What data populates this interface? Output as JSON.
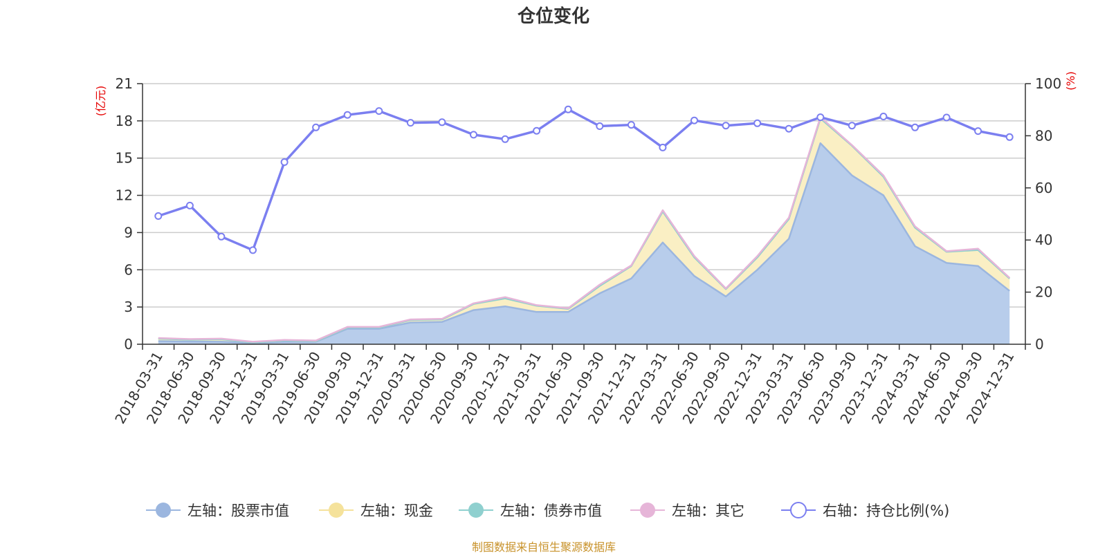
{
  "chart_data": {
    "type": "area",
    "title": "仓位变化",
    "left_unit": "(亿元)",
    "right_unit": "(%)",
    "left_ylim": [
      0,
      21
    ],
    "left_ticks": [
      0,
      3,
      6,
      9,
      12,
      15,
      18,
      21
    ],
    "right_ylim": [
      0,
      100
    ],
    "right_ticks": [
      0,
      20,
      40,
      60,
      80,
      100
    ],
    "categories": [
      "2018-03-31",
      "2018-06-30",
      "2018-09-30",
      "2018-12-31",
      "2019-03-31",
      "2019-06-30",
      "2019-09-30",
      "2019-12-31",
      "2020-03-31",
      "2020-06-30",
      "2020-09-30",
      "2020-12-31",
      "2021-03-31",
      "2021-06-30",
      "2021-09-30",
      "2021-12-31",
      "2022-03-31",
      "2022-06-30",
      "2022-09-30",
      "2022-12-31",
      "2023-03-31",
      "2023-06-30",
      "2023-09-30",
      "2023-12-31",
      "2024-03-31",
      "2024-06-30",
      "2024-09-30",
      "2024-12-31"
    ],
    "series": [
      {
        "name": "左轴：股票市值",
        "axis": "left",
        "stack": true,
        "color": "#9bb6df",
        "fill": "#b8cdeb",
        "values": [
          0.25,
          0.22,
          0.2,
          0.1,
          0.2,
          0.2,
          1.25,
          1.25,
          1.75,
          1.8,
          2.75,
          3.05,
          2.6,
          2.6,
          4.1,
          5.3,
          8.2,
          5.5,
          3.85,
          6.0,
          8.5,
          16.2,
          13.6,
          12.0,
          7.9,
          6.55,
          6.3,
          4.3
        ]
      },
      {
        "name": "左轴：现金",
        "axis": "left",
        "stack": true,
        "color": "#f5e29b",
        "fill": "#faefc4",
        "values": [
          0.2,
          0.15,
          0.2,
          0.05,
          0.1,
          0.05,
          0.1,
          0.1,
          0.2,
          0.2,
          0.5,
          0.65,
          0.5,
          0.25,
          0.6,
          1.0,
          2.5,
          1.5,
          0.6,
          1.0,
          1.6,
          2.0,
          2.4,
          1.5,
          1.5,
          0.9,
          1.3,
          1.0
        ]
      },
      {
        "name": "左轴：债券市值",
        "axis": "left",
        "stack": true,
        "color": "#8fd0cf",
        "fill": "#a8dcdb",
        "values": [
          0,
          0,
          0,
          0,
          0,
          0,
          0,
          0,
          0,
          0,
          0,
          0,
          0,
          0,
          0,
          0,
          0,
          0,
          0,
          0,
          0,
          0,
          0,
          0,
          0,
          0,
          0,
          0
        ]
      },
      {
        "name": "左轴：其它",
        "axis": "left",
        "stack": true,
        "color": "#e6b5d8",
        "fill": "#f0cfe6",
        "values": [
          0.05,
          0.05,
          0.05,
          0.05,
          0.05,
          0.05,
          0.05,
          0.05,
          0.05,
          0.05,
          0.05,
          0.1,
          0.05,
          0.05,
          0.1,
          0.05,
          0.1,
          0.1,
          0.05,
          0.1,
          0.1,
          0.1,
          0.05,
          0.1,
          0.1,
          0.05,
          0.1,
          0.05
        ]
      },
      {
        "name": "右轴：持仓比例(%)",
        "axis": "right",
        "type": "line",
        "color": "#7b7ff0",
        "values": [
          49.2,
          53.2,
          41.3,
          36.1,
          69.9,
          83.2,
          88.0,
          89.5,
          85.0,
          85.2,
          80.4,
          78.7,
          81.9,
          90.1,
          83.7,
          84.2,
          75.5,
          85.9,
          83.9,
          84.8,
          82.7,
          87.1,
          83.9,
          87.4,
          83.2,
          87.0,
          81.8,
          79.5
        ]
      }
    ]
  },
  "legend": [
    {
      "label": "左轴：股票市值",
      "color": "#9bb6df",
      "style": "filled"
    },
    {
      "label": "左轴：现金",
      "color": "#f5e29b",
      "style": "filled"
    },
    {
      "label": "左轴：债券市值",
      "color": "#8fd0cf",
      "style": "filled"
    },
    {
      "label": "左轴：其它",
      "color": "#e6b5d8",
      "style": "filled"
    },
    {
      "label": "右轴：持仓比例(%)",
      "color": "#7b7ff0",
      "style": "hollow"
    }
  ],
  "source": "制图数据来自恒生聚源数据库"
}
